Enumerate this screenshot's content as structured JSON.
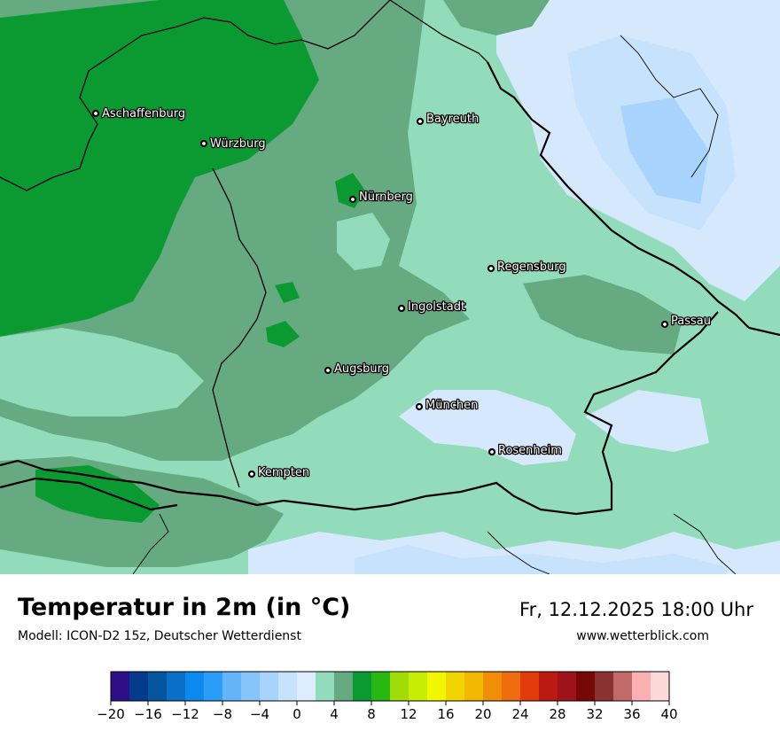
{
  "header": {
    "title": "Temperatur in 2m (in °C)",
    "model": "Modell: ICON-D2 15z, Deutscher Wetterdienst",
    "datetime": "Fr, 12.12.2025 18:00 Uhr",
    "website": "www.wetterblick.com"
  },
  "map": {
    "cities": [
      {
        "name": "Aschaffenburg"
      },
      {
        "name": "Würzburg"
      },
      {
        "name": "Bayreuth"
      },
      {
        "name": "Nürnberg"
      },
      {
        "name": "Regensburg"
      },
      {
        "name": "Ingolstadt"
      },
      {
        "name": "Passau"
      },
      {
        "name": "Augsburg"
      },
      {
        "name": "München"
      },
      {
        "name": "Rosenheim"
      },
      {
        "name": "Kempten"
      }
    ]
  },
  "legend": {
    "ticks": [
      "−20",
      "−16",
      "−12",
      "−8",
      "−4",
      "0",
      "4",
      "8",
      "12",
      "16",
      "20",
      "24",
      "28",
      "32",
      "36",
      "40"
    ],
    "colors": [
      "#2e0f8a",
      "#033a8c",
      "#03559d",
      "#0a6fc7",
      "#0c89ee",
      "#2c9cf9",
      "#63b4fb",
      "#86c4fb",
      "#a7d3fc",
      "#c6e2fd",
      "#deedfd",
      "#92dcbc",
      "#66aa82",
      "#0b9a32",
      "#27b812",
      "#9fdc08",
      "#c8ed04",
      "#f0f700",
      "#f2d500",
      "#f2b700",
      "#f08e0a",
      "#ee6d0f",
      "#e33c0c",
      "#bc1914",
      "#a01219",
      "#760808",
      "#8a3232",
      "#c16a6a",
      "#fbb1b1",
      "#fdd8d8"
    ]
  }
}
